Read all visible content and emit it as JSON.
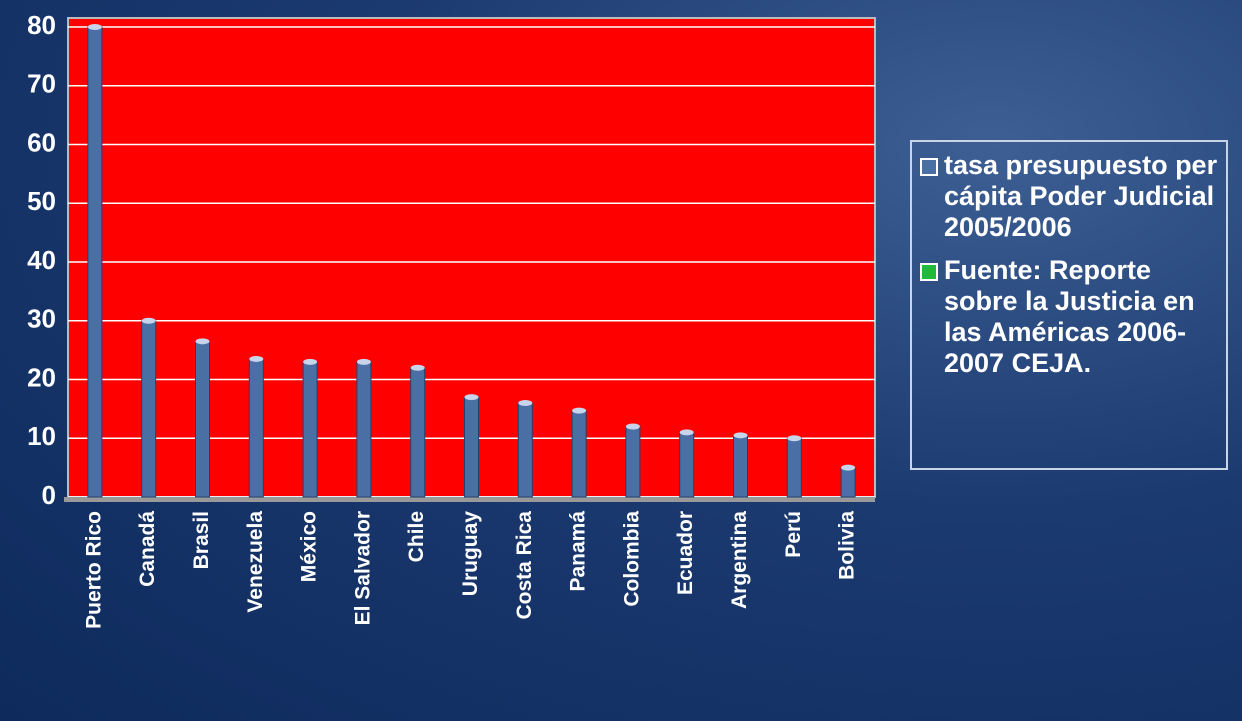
{
  "chart_data": {
    "type": "bar",
    "categories": [
      "Puerto Rico",
      "Canadá",
      "Brasil",
      "Venezuela",
      "México",
      "El Salvador",
      "Chile",
      "Uruguay",
      "Costa Rica",
      "Panamá",
      "Colombia",
      "Ecuador",
      "Argentina",
      "Perú",
      "Bolivia"
    ],
    "series": [
      {
        "name": "tasa presupuesto per cápita Poder Judicial 2005/2006",
        "color": "#4a6fa5",
        "values": [
          80,
          30,
          26.5,
          23.5,
          23,
          23,
          22,
          17,
          16,
          14.7,
          12,
          11,
          10.5,
          10,
          5
        ]
      }
    ],
    "note": {
      "text": "Fuente: Reporte sobre la Justicia en las Américas 2006-2007 CEJA.",
      "color": "#22b83a"
    },
    "ylim": [
      0,
      80
    ],
    "yticks": [
      0,
      10,
      20,
      30,
      40,
      50,
      60,
      70,
      80
    ],
    "grid": true,
    "plot_color": "#ff0000"
  }
}
